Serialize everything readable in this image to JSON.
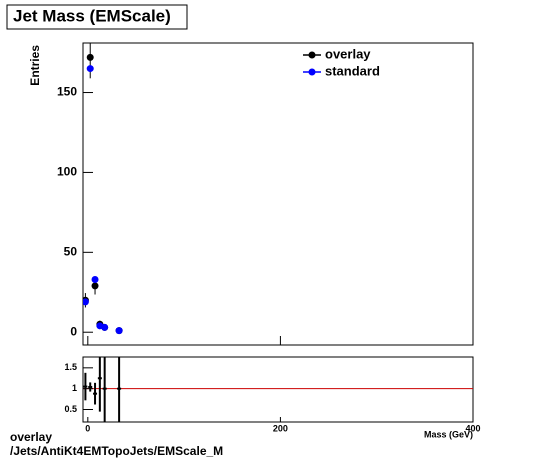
{
  "chart_data": [
    {
      "type": "scatter",
      "title": "Jet Mass (EMScale)",
      "ylabel": "Entries",
      "x": [
        -2.5,
        2.5,
        7.5,
        12.5,
        17.5,
        32.5
      ],
      "series": [
        {
          "name": "overlay",
          "color": "#000000",
          "values": [
            20,
            172,
            29,
            5,
            3,
            1
          ],
          "errors": [
            4.5,
            13.1,
            5.4,
            2.2,
            1.7,
            1
          ]
        },
        {
          "name": "standard",
          "color": "#0000ff",
          "values": [
            19,
            165,
            33,
            4,
            3,
            1
          ]
        }
      ],
      "xlim": [
        -5,
        400
      ],
      "ylim": [
        -8,
        181
      ],
      "yticks": [
        0,
        50,
        100,
        150
      ],
      "annotations": [
        "overlay",
        "/Jets/AntiKt4EMTopoJets/EMScale_M"
      ]
    },
    {
      "type": "ratio",
      "xlabel": "Mass (GeV)",
      "x": [
        -2.5,
        2.5,
        7.5,
        12.5,
        17.5,
        32.5
      ],
      "series": [
        {
          "color": "#000000",
          "values": [
            1.05,
            1.04,
            0.88,
            1.25,
            1,
            1
          ],
          "errors": [
            0.33,
            0.11,
            0.26,
            0.8,
            1,
            1.4
          ]
        }
      ],
      "reference": 1,
      "reference_color": "#cc0000",
      "xlim": [
        -5,
        400
      ],
      "xticks": [
        0,
        200,
        400
      ],
      "ylim": [
        0.2,
        1.76
      ],
      "yticks": [
        0.5,
        1,
        1.5
      ]
    }
  ]
}
